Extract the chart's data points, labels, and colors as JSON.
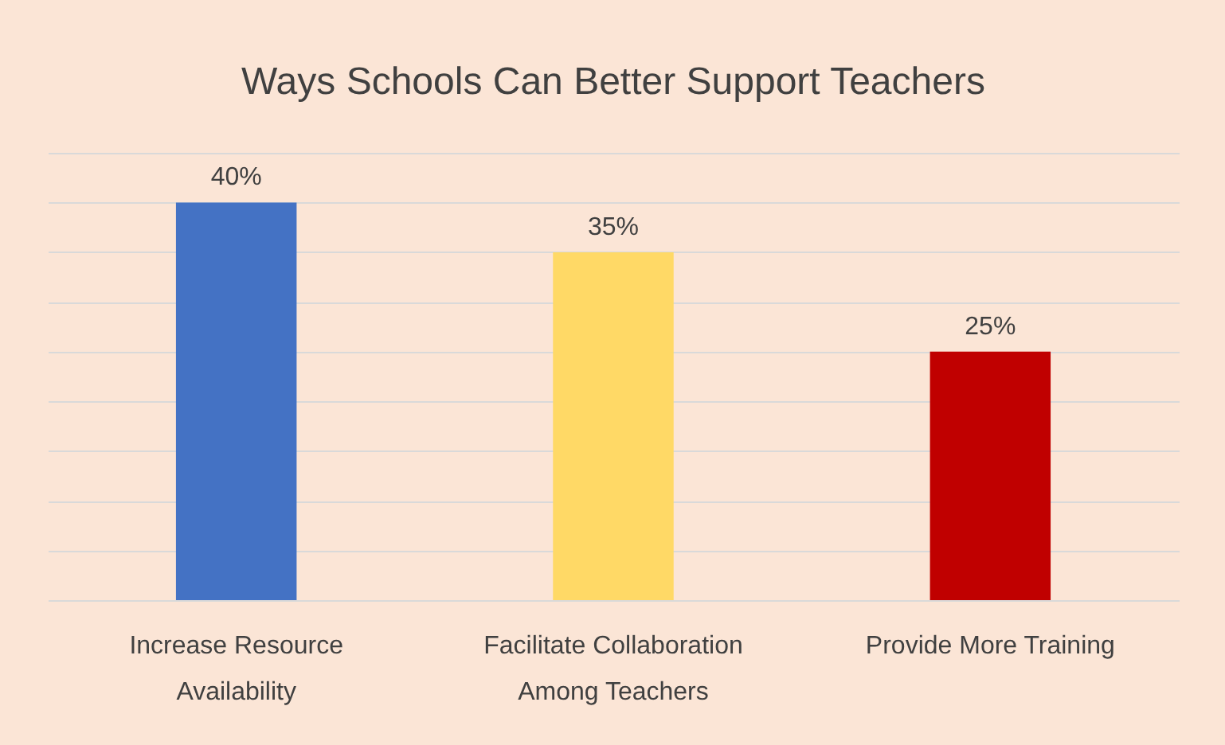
{
  "chart_data": {
    "type": "bar",
    "title": "Ways Schools Can Better Support Teachers",
    "categories": [
      "Increase Resource\nAvailability",
      "Facilitate Collaboration\nAmong Teachers",
      "Provide More Training"
    ],
    "values": [
      40,
      35,
      25
    ],
    "colors": [
      "#4472c4",
      "#ffd966",
      "#c00000"
    ],
    "value_labels": [
      "40%",
      "35%",
      "25%"
    ],
    "ylim": [
      0,
      45
    ],
    "yticks": [
      {
        "value": 0,
        "label": null
      },
      {
        "value": 5,
        "label": null
      },
      {
        "value": 10,
        "label": null
      },
      {
        "value": 15,
        "label": null
      },
      {
        "value": 20,
        "label": null
      },
      {
        "value": 25,
        "label": null
      },
      {
        "value": 30,
        "label": null
      },
      {
        "value": 35,
        "label": null
      },
      {
        "value": 40,
        "label": null
      },
      {
        "value": 45,
        "label": null
      }
    ],
    "grid": "y",
    "tick_labels": "x"
  }
}
